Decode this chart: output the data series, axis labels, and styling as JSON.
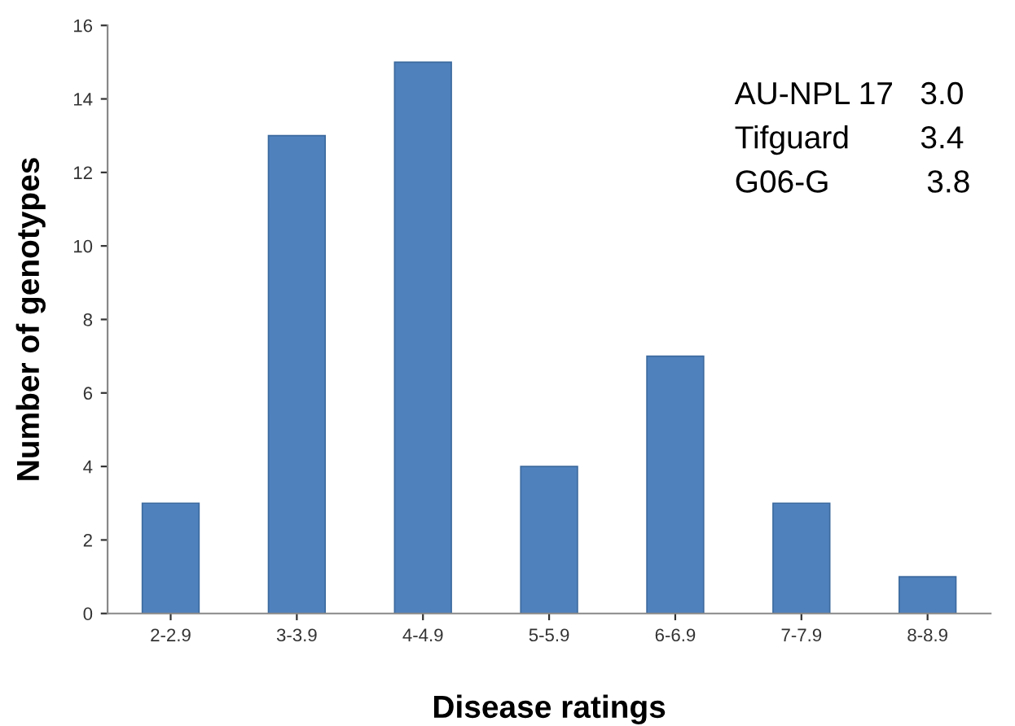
{
  "chart_data": {
    "type": "bar",
    "xlabel": "Disease ratings",
    "ylabel": "Number of genotypes",
    "categories": [
      "2-2.9",
      "3-3.9",
      "4-4.9",
      "5-5.9",
      "6-6.9",
      "7-7.9",
      "8-8.9"
    ],
    "values": [
      3,
      13,
      15,
      4,
      7,
      3,
      1
    ],
    "color": "#4f81bd",
    "ylim": [
      0,
      16
    ],
    "yticks": [
      0,
      2,
      4,
      6,
      8,
      10,
      12,
      14,
      16
    ],
    "grid": false,
    "annotations": [
      "AU-NPL 17   3.0",
      "Tifguard        3.4",
      "G06-G           3.8"
    ]
  }
}
